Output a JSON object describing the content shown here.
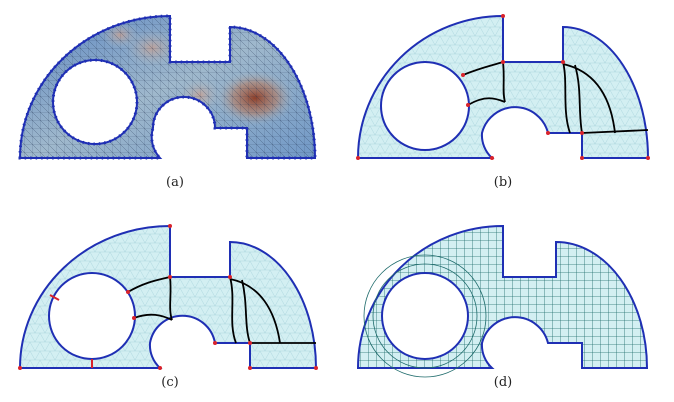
{
  "panels": [
    {
      "id": "a",
      "caption": "(a)"
    },
    {
      "id": "b",
      "caption": "(b)"
    },
    {
      "id": "c",
      "caption": "(c)"
    },
    {
      "id": "d",
      "caption": "(d)"
    }
  ],
  "colors": {
    "boundary": "#1f2fb4",
    "fill": "#d3eff2",
    "mesh_line": "#7fb3bf",
    "quad_line": "#1e6b6b",
    "partition": "#000000",
    "corner": "#d9232c",
    "heat_low": "#3a66b0",
    "heat_mid": "#a7bdc9",
    "heat_high": "#a0442b"
  }
}
